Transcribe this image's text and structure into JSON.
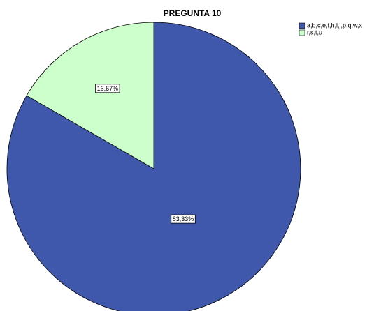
{
  "chart_data": {
    "type": "pie",
    "title": "PREGUNTA 10",
    "categories": [
      "a,b,c,e,f,h,i,j,p,q,w,x",
      "r,s,t,u"
    ],
    "values": [
      83.33,
      16.67
    ],
    "value_labels": [
      "83,33%",
      "16,67%"
    ],
    "colors": [
      "#3f58ab",
      "#ccffcc"
    ],
    "legend": "top-right"
  }
}
